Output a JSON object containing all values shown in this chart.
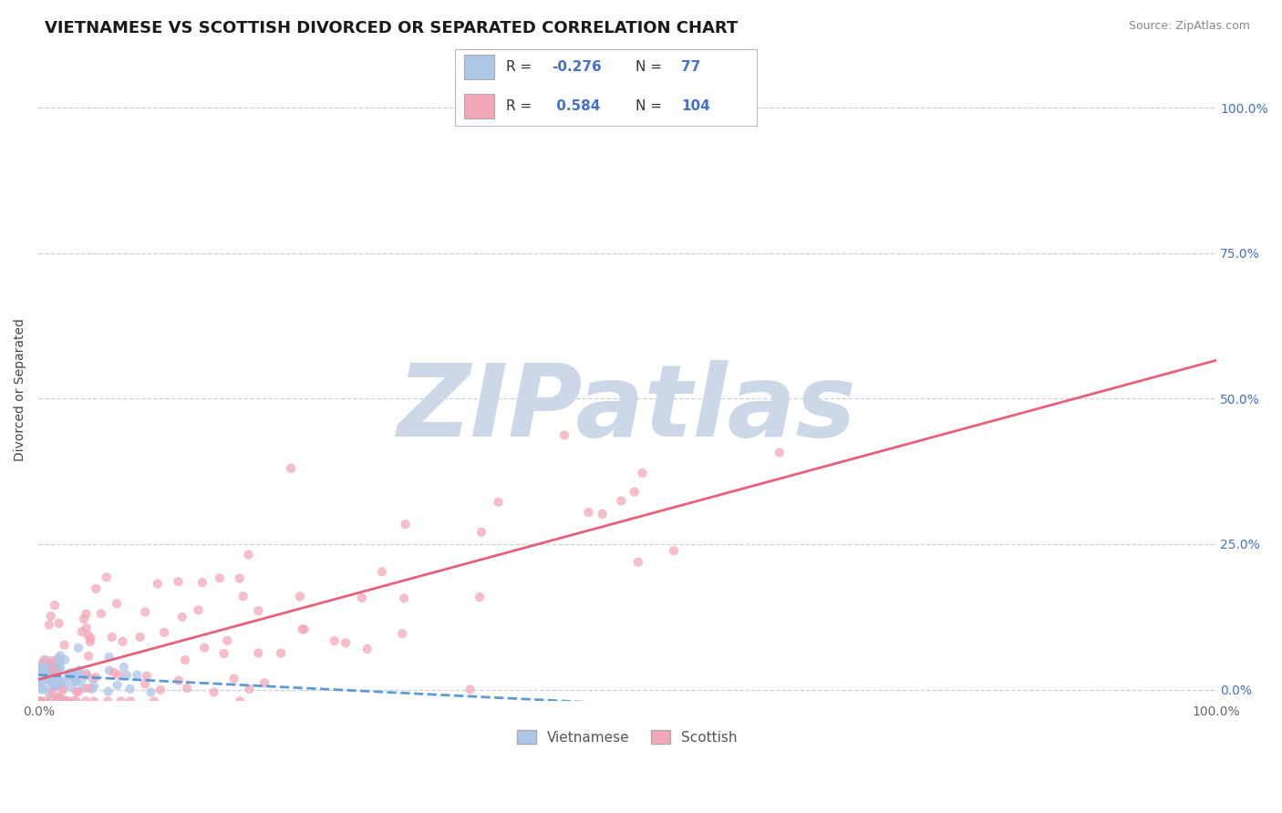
{
  "title": "VIETNAMESE VS SCOTTISH DIVORCED OR SEPARATED CORRELATION CHART",
  "source": "Source: ZipAtlas.com",
  "ylabel": "Divorced or Separated",
  "legend_vietnamese": "Vietnamese",
  "legend_scottish": "Scottish",
  "r_vietnamese": -0.276,
  "n_vietnamese": 77,
  "r_scottish": 0.584,
  "n_scottish": 104,
  "xlim": [
    0.0,
    1.0
  ],
  "ylim": [
    -0.02,
    1.05
  ],
  "xtick_labels": [
    "0.0%",
    "100.0%"
  ],
  "ytick_labels": [
    "0.0%",
    "25.0%",
    "50.0%",
    "75.0%",
    "100.0%"
  ],
  "ytick_positions": [
    0.0,
    0.25,
    0.5,
    0.75,
    1.0
  ],
  "color_vietnamese": "#aec6e8",
  "color_scottish": "#f4a7b9",
  "color_line_vietnamese": "#5b9bd5",
  "color_line_scottish": "#e8607a",
  "color_text_blue": "#4472c4",
  "background_color": "#ffffff",
  "grid_color": "#c8d0dc",
  "watermark_color": "#ccd8e8",
  "watermark_text": "ZIPatlas",
  "title_fontsize": 13,
  "label_fontsize": 10,
  "tick_fontsize": 10
}
